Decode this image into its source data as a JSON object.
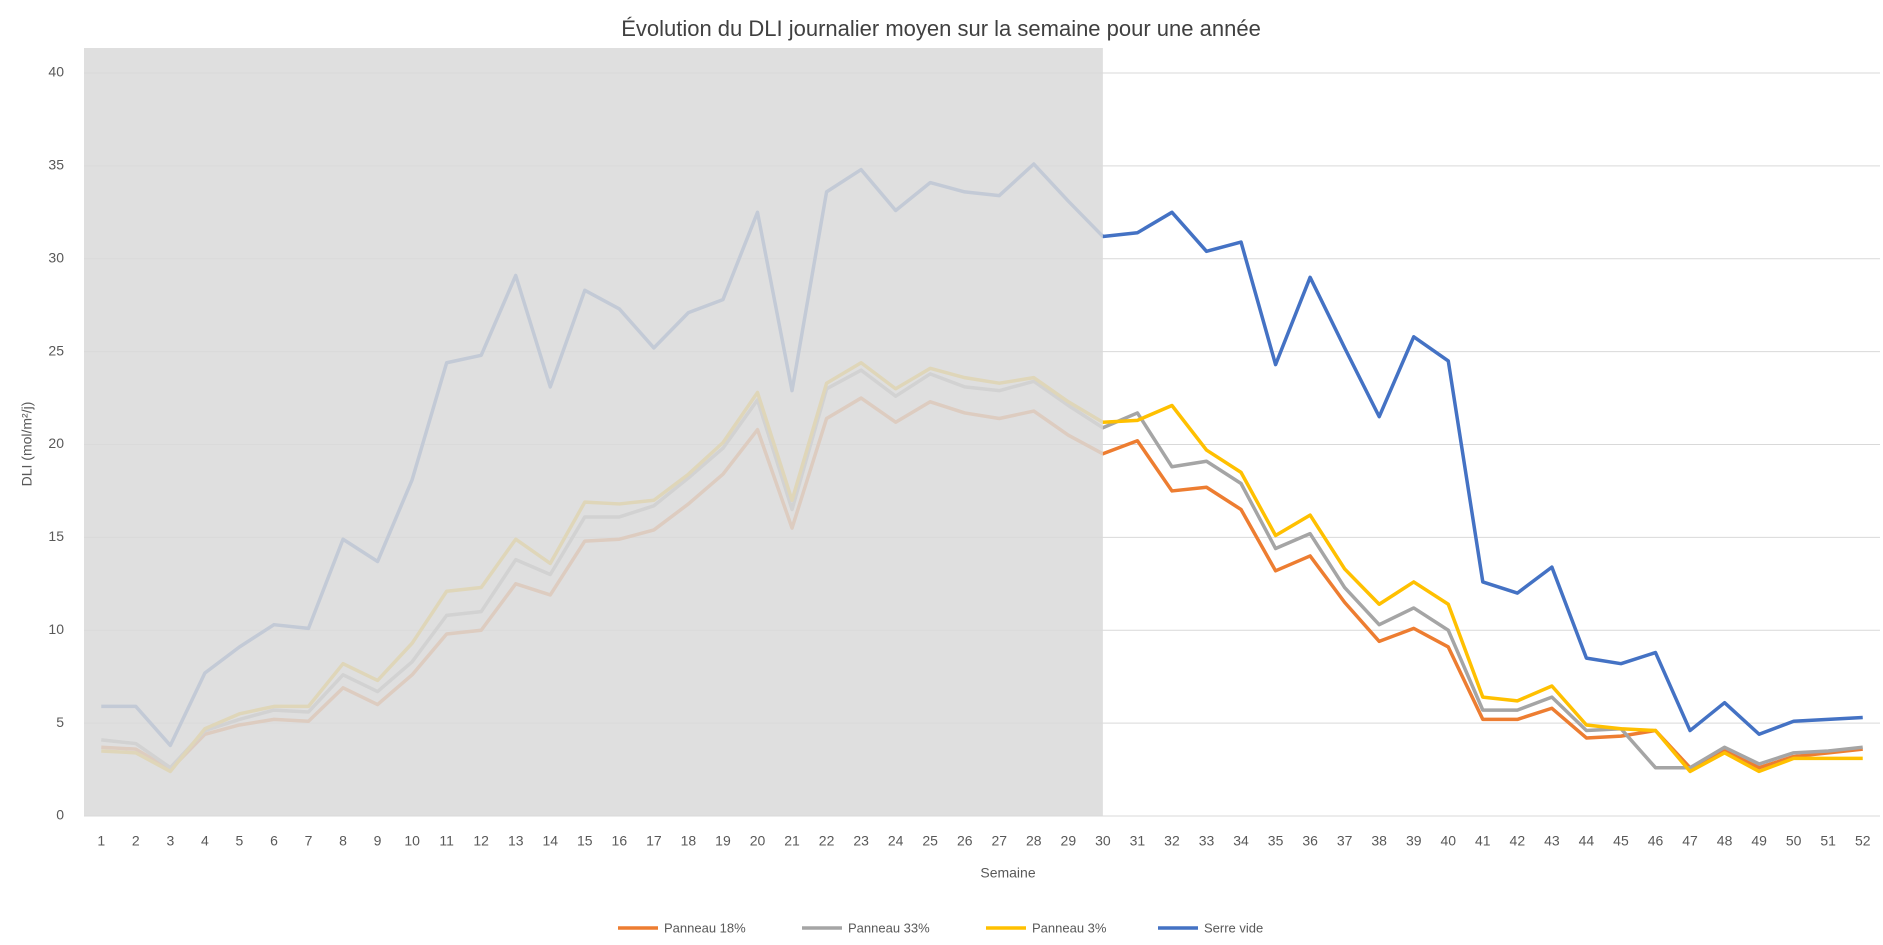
{
  "chart_data": {
    "type": "line",
    "title": "Évolution du DLI  journalier moyen sur la semaine pour une année",
    "x_label": "Semaine",
    "y_label": "DLI (mol/m²/j)",
    "categories": [
      "1",
      "2",
      "3",
      "4",
      "5",
      "6",
      "7",
      "8",
      "9",
      "10",
      "11",
      "12",
      "13",
      "14",
      "15",
      "16",
      "17",
      "18",
      "19",
      "20",
      "21",
      "22",
      "23",
      "24",
      "25",
      "26",
      "27",
      "28",
      "29",
      "30",
      "31",
      "32",
      "33",
      "34",
      "35",
      "36",
      "37",
      "38",
      "39",
      "40",
      "41",
      "42",
      "43",
      "44",
      "45",
      "46",
      "47",
      "48",
      "49",
      "50",
      "51",
      "52"
    ],
    "ylim": [
      0,
      40
    ],
    "yticks": [
      0,
      5,
      10,
      15,
      20,
      25,
      30,
      35,
      40
    ],
    "grid": true,
    "legend": "bottom",
    "shade_through": 30,
    "series": [
      {
        "name": "Panneau 18%",
        "color": "#ed7d31",
        "values": [
          3.7,
          3.6,
          2.5,
          4.4,
          4.9,
          5.2,
          5.1,
          6.9,
          6.0,
          7.6,
          9.8,
          10.0,
          12.5,
          11.9,
          14.8,
          14.9,
          15.4,
          16.8,
          18.4,
          20.8,
          15.5,
          21.4,
          22.5,
          21.2,
          22.3,
          21.7,
          21.4,
          21.8,
          20.5,
          19.5,
          20.2,
          17.5,
          17.7,
          16.5,
          13.2,
          14.0,
          11.5,
          9.4,
          10.1,
          9.1,
          5.2,
          5.2,
          5.8,
          4.2,
          4.3,
          4.6,
          2.6,
          3.5,
          2.6,
          3.2,
          3.4,
          3.6
        ]
      },
      {
        "name": "Panneau 33%",
        "color": "#a5a5a5",
        "values": [
          4.1,
          3.9,
          2.6,
          4.6,
          5.2,
          5.7,
          5.6,
          7.6,
          6.7,
          8.3,
          10.8,
          11.0,
          13.8,
          13.0,
          16.1,
          16.1,
          16.7,
          18.2,
          19.8,
          22.4,
          16.5,
          23.0,
          24.0,
          22.6,
          23.8,
          23.1,
          22.9,
          23.4,
          22.1,
          20.9,
          21.7,
          18.8,
          19.1,
          17.9,
          14.4,
          15.2,
          12.3,
          10.3,
          11.2,
          10.0,
          5.7,
          5.7,
          6.4,
          4.6,
          4.7,
          2.6,
          2.6,
          3.7,
          2.8,
          3.4,
          3.5,
          3.7
        ]
      },
      {
        "name": "Panneau 3%",
        "color": "#ffc000",
        "values": [
          3.5,
          3.4,
          2.4,
          4.7,
          5.5,
          5.9,
          5.9,
          8.2,
          7.3,
          9.3,
          12.1,
          12.3,
          14.9,
          13.6,
          16.9,
          16.8,
          17.0,
          18.4,
          20.1,
          22.8,
          17.0,
          23.3,
          24.4,
          23.0,
          24.1,
          23.6,
          23.3,
          23.6,
          22.3,
          21.2,
          21.3,
          22.1,
          19.7,
          18.5,
          15.1,
          16.2,
          13.3,
          11.4,
          12.6,
          11.4,
          6.4,
          6.2,
          7.0,
          4.9,
          4.7,
          4.6,
          2.4,
          3.4,
          2.4,
          3.1,
          3.1,
          3.1
        ]
      },
      {
        "name": "Serre vide",
        "color": "#4472c4",
        "values": [
          5.9,
          5.9,
          3.8,
          7.7,
          9.1,
          10.3,
          10.1,
          14.9,
          13.7,
          18.1,
          24.4,
          24.8,
          29.1,
          23.1,
          28.3,
          27.3,
          25.2,
          27.1,
          27.8,
          32.5,
          22.9,
          33.6,
          34.8,
          32.6,
          34.1,
          33.6,
          33.4,
          35.1,
          33.1,
          31.2,
          31.4,
          32.5,
          30.4,
          30.9,
          24.3,
          29.0,
          25.2,
          21.5,
          25.8,
          24.5,
          12.6,
          12.0,
          13.4,
          8.5,
          8.2,
          8.8,
          4.6,
          6.1,
          4.4,
          5.1,
          5.2,
          5.3
        ]
      }
    ]
  }
}
